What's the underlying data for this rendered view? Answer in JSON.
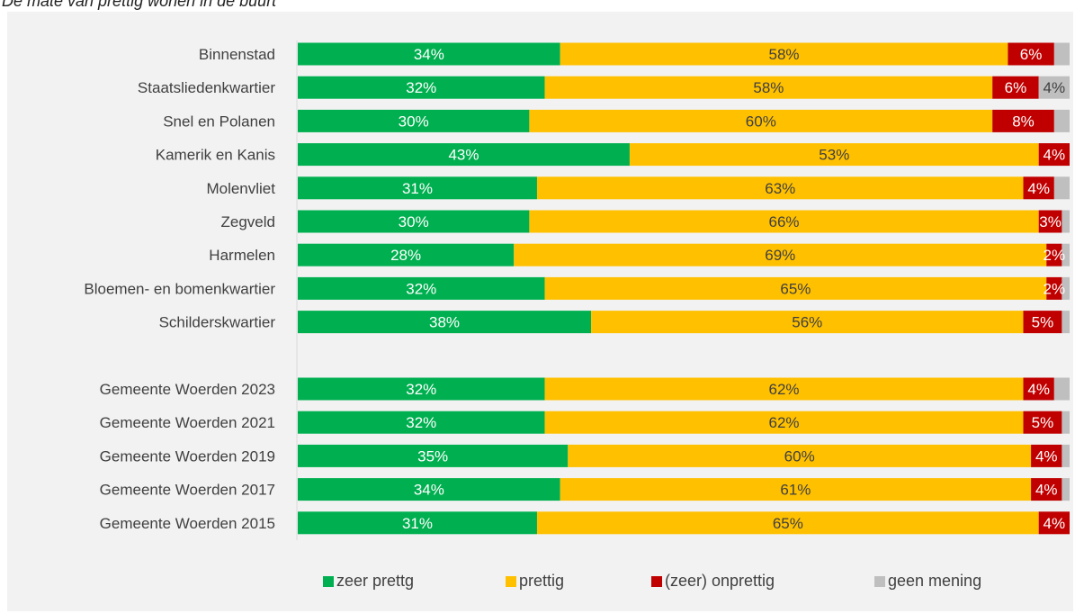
{
  "chart_data": {
    "type": "bar",
    "orientation": "horizontal",
    "stacked": "percent",
    "title": "De mate van prettig wonen in de buurt",
    "categories": [
      "Binnenstad",
      "Staatsliedenkwartier",
      "Snel en Polanen",
      "Kamerik en Kanis",
      "Molenvliet",
      "Zegveld",
      "Harmelen",
      "Bloemen- en bomenkwartier",
      "Schilderskwartier",
      "",
      "Gemeente Woerden 2023",
      "Gemeente Woerden 2021",
      "Gemeente Woerden 2019",
      "Gemeente Woerden 2017",
      "Gemeente Woerden 2015"
    ],
    "series": [
      {
        "name": "zeer prettg",
        "color": "#00b050",
        "label_color": "#ffffff",
        "values": [
          34,
          32,
          30,
          43,
          31,
          30,
          28,
          32,
          38,
          null,
          32,
          32,
          35,
          34,
          31
        ]
      },
      {
        "name": "prettig",
        "color": "#ffc000",
        "label_color": "#404040",
        "values": [
          58,
          58,
          60,
          53,
          63,
          66,
          69,
          65,
          56,
          null,
          62,
          62,
          60,
          61,
          65
        ]
      },
      {
        "name": "(zeer) onprettig",
        "color": "#c00000",
        "label_color": "#ffffff",
        "values": [
          6,
          6,
          8,
          4,
          4,
          3,
          2,
          2,
          5,
          null,
          4,
          5,
          4,
          4,
          4
        ]
      },
      {
        "name": "geen mening",
        "color": "#bfbfbf",
        "label_color": "#404040",
        "values": [
          2,
          4,
          2,
          0,
          2,
          1,
          1,
          1,
          1,
          null,
          2,
          1,
          1,
          1,
          0
        ]
      }
    ],
    "shown_labels": [
      [
        true,
        true,
        true,
        false
      ],
      [
        true,
        true,
        true,
        true
      ],
      [
        true,
        true,
        true,
        false
      ],
      [
        true,
        true,
        true,
        false
      ],
      [
        true,
        true,
        true,
        false
      ],
      [
        true,
        true,
        true,
        false
      ],
      [
        true,
        true,
        true,
        false
      ],
      [
        true,
        true,
        true,
        false
      ],
      [
        true,
        true,
        true,
        false
      ],
      [
        false,
        false,
        false,
        false
      ],
      [
        true,
        true,
        true,
        false
      ],
      [
        true,
        true,
        true,
        false
      ],
      [
        true,
        true,
        true,
        false
      ],
      [
        true,
        true,
        true,
        false
      ],
      [
        true,
        true,
        true,
        false
      ]
    ],
    "xlim": [
      0,
      100
    ],
    "value_suffix": "%",
    "grid": false,
    "legend_position": "bottom"
  }
}
